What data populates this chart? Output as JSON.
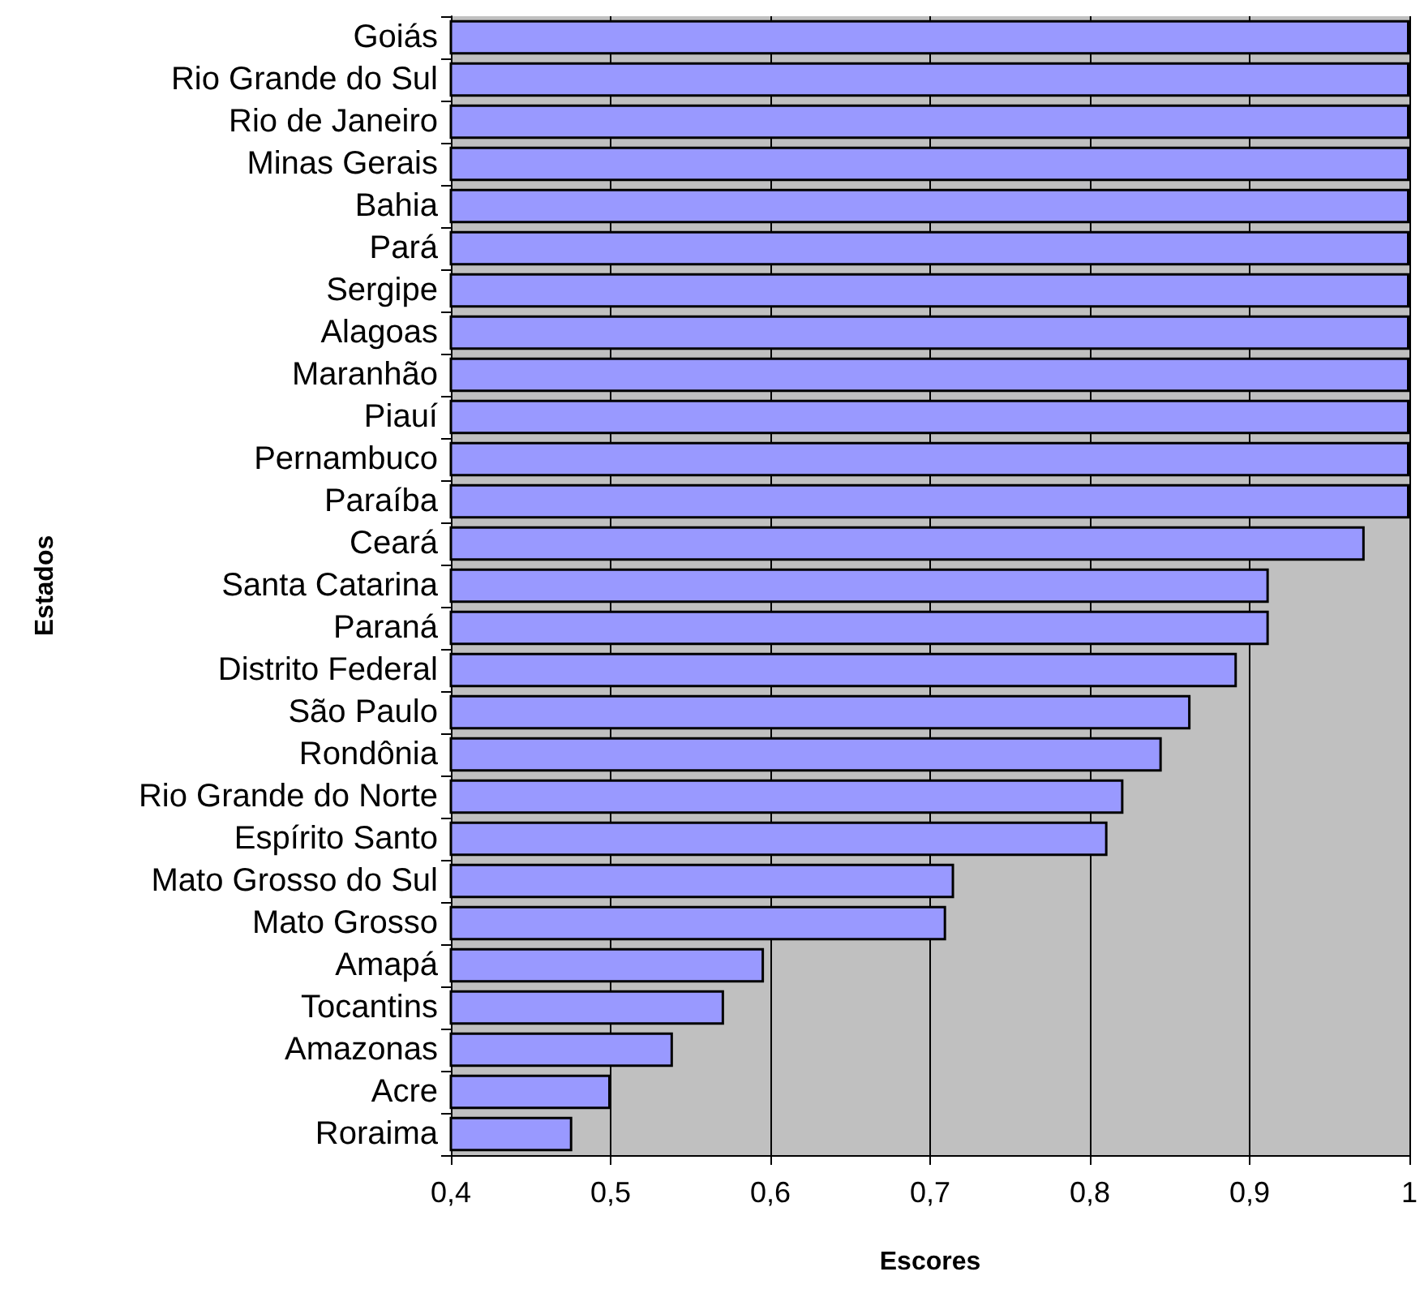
{
  "chart_data": {
    "type": "bar",
    "orientation": "horizontal",
    "xlabel": "Escores",
    "ylabel": "Estados",
    "categories": [
      "Goiás",
      "Rio Grande do Sul",
      "Rio de Janeiro",
      "Minas Gerais",
      "Bahia",
      "Pará",
      "Sergipe",
      "Alagoas",
      "Maranhão",
      "Piauí",
      "Pernambuco",
      "Paraíba",
      "Ceará",
      "Santa Catarina",
      "Paraná",
      "Distrito Federal",
      "São Paulo",
      "Rondônia",
      "Rio Grande do Norte",
      "Espírito Santo",
      "Mato Grosso do Sul",
      "Mato Grosso",
      "Amapá",
      "Tocantins",
      "Amazonas",
      "Acre",
      "Roraima"
    ],
    "values": [
      1,
      1,
      1,
      1,
      1,
      1,
      1,
      1,
      1,
      1,
      1,
      1,
      0.972,
      0.912,
      0.912,
      0.892,
      0.863,
      0.845,
      0.821,
      0.811,
      0.715,
      0.71,
      0.596,
      0.571,
      0.539,
      0.5,
      0.476
    ],
    "color": "#9999ff",
    "xlim": [
      0.4,
      1
    ],
    "xticks": [
      {
        "value": 0.4,
        "label": "0,4"
      },
      {
        "value": 0.5,
        "label": "0,5"
      },
      {
        "value": 0.6,
        "label": "0,6"
      },
      {
        "value": 0.7,
        "label": "0,7"
      },
      {
        "value": 0.8,
        "label": "0,8"
      },
      {
        "value": 0.9,
        "label": "0,9"
      },
      1
    ],
    "grid": "x"
  }
}
